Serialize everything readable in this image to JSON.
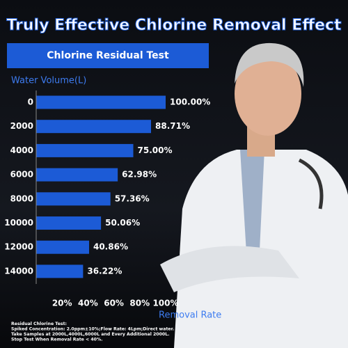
{
  "chart_data": {
    "type": "bar",
    "orientation": "horizontal",
    "title": "Truly Effective Chlorine Removal Effect",
    "subtitle": "Chlorine Residual Test",
    "y_label": "Water Volume(L)",
    "x_label": "Removal Rate",
    "categories": [
      "0",
      "2000",
      "4000",
      "6000",
      "8000",
      "10000",
      "12000",
      "14000"
    ],
    "values": [
      100,
      88.71,
      75,
      62.98,
      57.36,
      50.06,
      40.86,
      36.22
    ],
    "value_labels": [
      "100.00%",
      "88.71%",
      "75.00%",
      "62.98%",
      "57.36%",
      "50.06%",
      "40.86%",
      "36.22%"
    ],
    "color": "#1c5bd6",
    "xlim": [
      0,
      100
    ],
    "xticks": [
      {
        "value": 20,
        "label": "20%"
      },
      {
        "value": 40,
        "label": "40%"
      },
      {
        "value": 60,
        "label": "60%"
      },
      {
        "value": 80,
        "label": "80%"
      },
      {
        "value": 100,
        "label": "100%"
      }
    ],
    "notes": [
      "Residual Chlorine Test:",
      "Spiked Concentration: 2.0ppm±10%;Flow Rate: 4Lpm;Direct water.",
      "Take Samples at 2000L,4000L,6000L and Every Additional 2000L.",
      "Stop Test When Removal Rate < 40%."
    ]
  }
}
